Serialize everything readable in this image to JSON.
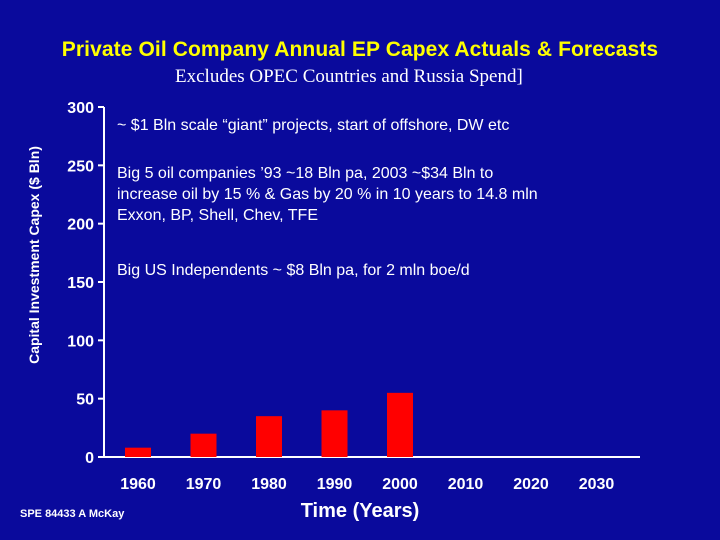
{
  "slide": {
    "title": "Private Oil Company Annual EP Capex Actuals & Forecasts",
    "subtitle": "Excludes OPEC Countries and Russia Spend]",
    "footer": "SPE 84433  A McKay"
  },
  "annotations": [
    {
      "text": "~ $1 Bln scale “giant” projects, start of offshore, DW etc"
    },
    {
      "text": "Big 5 oil companies ’93 ~18 Bln pa, 2003 ~$34 Bln  to\nincrease oil by 15 % & Gas by 20 % in 10 years to 14.8 mln\nExxon, BP, Shell, Chev, TFE"
    },
    {
      "text": "Big US Independents ~ $8 Bln pa, for 2 mln boe/d"
    }
  ],
  "chart_data": {
    "type": "bar",
    "title": "Private Oil Company Annual EP Capex Actuals & Forecasts",
    "subtitle": "Excludes OPEC Countries and Russia Spend]",
    "xlabel": "Time (Years)",
    "ylabel": "Capital Investment Capex ($ Bln)",
    "categories": [
      "1960",
      "1970",
      "1980",
      "1990",
      "2000",
      "2010",
      "2020",
      "2030"
    ],
    "values": [
      8,
      20,
      35,
      40,
      55,
      null,
      null,
      null
    ],
    "ylim": [
      0,
      300
    ],
    "yticks": [
      0,
      50,
      100,
      150,
      200,
      250,
      300
    ],
    "grid": false,
    "legend": "none",
    "colors": {
      "bar": "#ff0000",
      "axis": "#ffffff",
      "text": "#ffffff",
      "background": "#0a0a9c",
      "title": "#ffff00"
    }
  }
}
